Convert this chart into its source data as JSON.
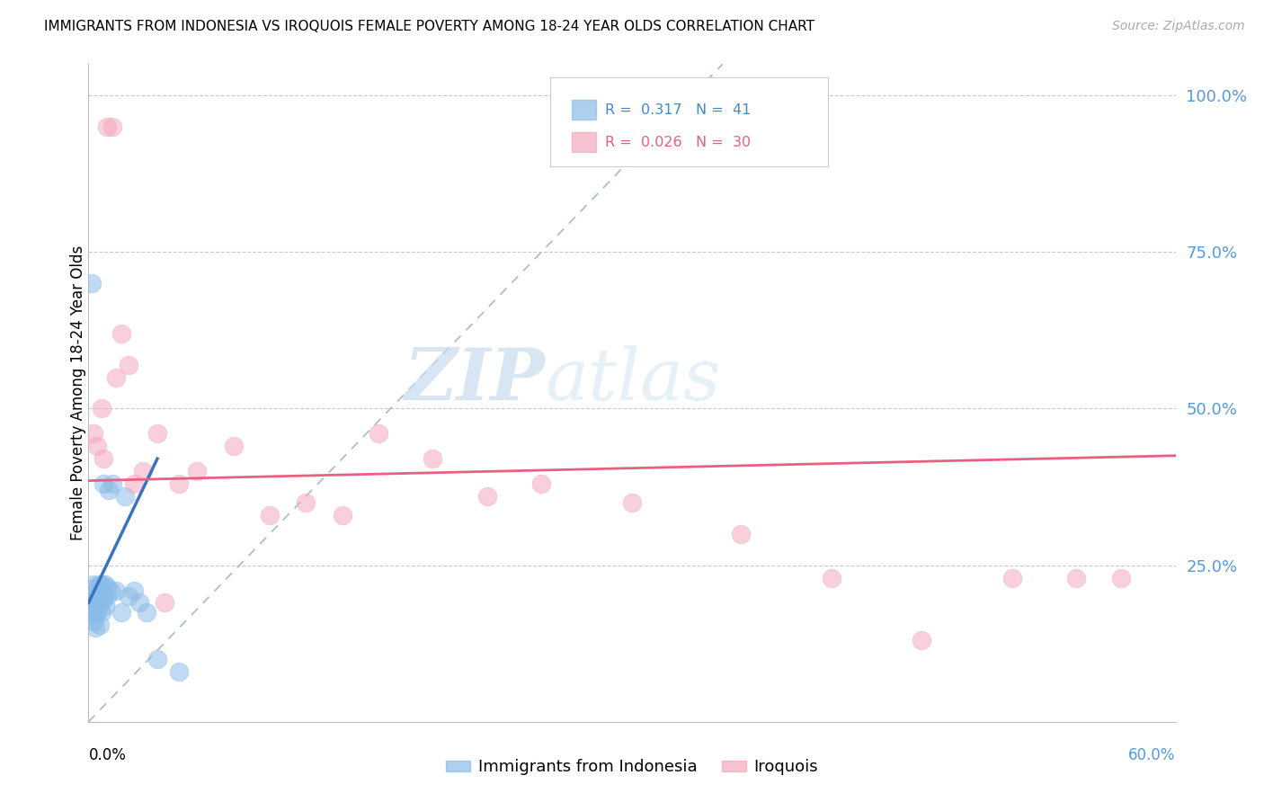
{
  "title": "IMMIGRANTS FROM INDONESIA VS IROQUOIS FEMALE POVERTY AMONG 18-24 YEAR OLDS CORRELATION CHART",
  "source": "Source: ZipAtlas.com",
  "ylabel": "Female Poverty Among 18-24 Year Olds",
  "y_tick_labels": [
    "25.0%",
    "50.0%",
    "75.0%",
    "100.0%"
  ],
  "y_tick_positions": [
    0.25,
    0.5,
    0.75,
    1.0
  ],
  "xlim": [
    0.0,
    0.6
  ],
  "ylim": [
    0.0,
    1.05
  ],
  "legend_label1": "Immigrants from Indonesia",
  "legend_label2": "Iroquois",
  "color_blue": "#8BBCE8",
  "color_pink": "#F4A8BC",
  "color_blue_line": "#3A72C0",
  "color_pink_line": "#E86080",
  "color_diag": "#A8B8D0",
  "watermark_zip": "ZIP",
  "watermark_atlas": "atlas",
  "blue_scatter_x": [
    0.002,
    0.003,
    0.003,
    0.003,
    0.003,
    0.004,
    0.004,
    0.004,
    0.004,
    0.005,
    0.005,
    0.005,
    0.005,
    0.005,
    0.006,
    0.006,
    0.006,
    0.006,
    0.007,
    0.007,
    0.007,
    0.008,
    0.008,
    0.008,
    0.009,
    0.009,
    0.01,
    0.01,
    0.011,
    0.012,
    0.013,
    0.015,
    0.018,
    0.02,
    0.022,
    0.025,
    0.028,
    0.032,
    0.038,
    0.05,
    0.002
  ],
  "blue_scatter_y": [
    0.175,
    0.18,
    0.2,
    0.16,
    0.22,
    0.17,
    0.19,
    0.215,
    0.15,
    0.18,
    0.2,
    0.21,
    0.175,
    0.19,
    0.19,
    0.22,
    0.2,
    0.155,
    0.21,
    0.22,
    0.175,
    0.2,
    0.195,
    0.38,
    0.22,
    0.185,
    0.2,
    0.215,
    0.37,
    0.21,
    0.38,
    0.21,
    0.175,
    0.36,
    0.2,
    0.21,
    0.19,
    0.175,
    0.1,
    0.08,
    0.7
  ],
  "pink_scatter_x": [
    0.003,
    0.005,
    0.008,
    0.01,
    0.013,
    0.018,
    0.022,
    0.03,
    0.038,
    0.05,
    0.06,
    0.08,
    0.1,
    0.12,
    0.14,
    0.16,
    0.19,
    0.22,
    0.25,
    0.3,
    0.36,
    0.41,
    0.46,
    0.51,
    0.545,
    0.57,
    0.007,
    0.015,
    0.025,
    0.042
  ],
  "pink_scatter_y": [
    0.46,
    0.44,
    0.42,
    0.95,
    0.95,
    0.62,
    0.57,
    0.4,
    0.46,
    0.38,
    0.4,
    0.44,
    0.33,
    0.35,
    0.33,
    0.46,
    0.42,
    0.36,
    0.38,
    0.35,
    0.3,
    0.23,
    0.13,
    0.23,
    0.23,
    0.23,
    0.5,
    0.55,
    0.38,
    0.19
  ],
  "blue_trend_x": [
    0.0,
    0.038
  ],
  "blue_trend_y": [
    0.19,
    0.42
  ],
  "pink_trend_x": [
    0.0,
    0.6
  ],
  "pink_trend_y": [
    0.385,
    0.425
  ]
}
